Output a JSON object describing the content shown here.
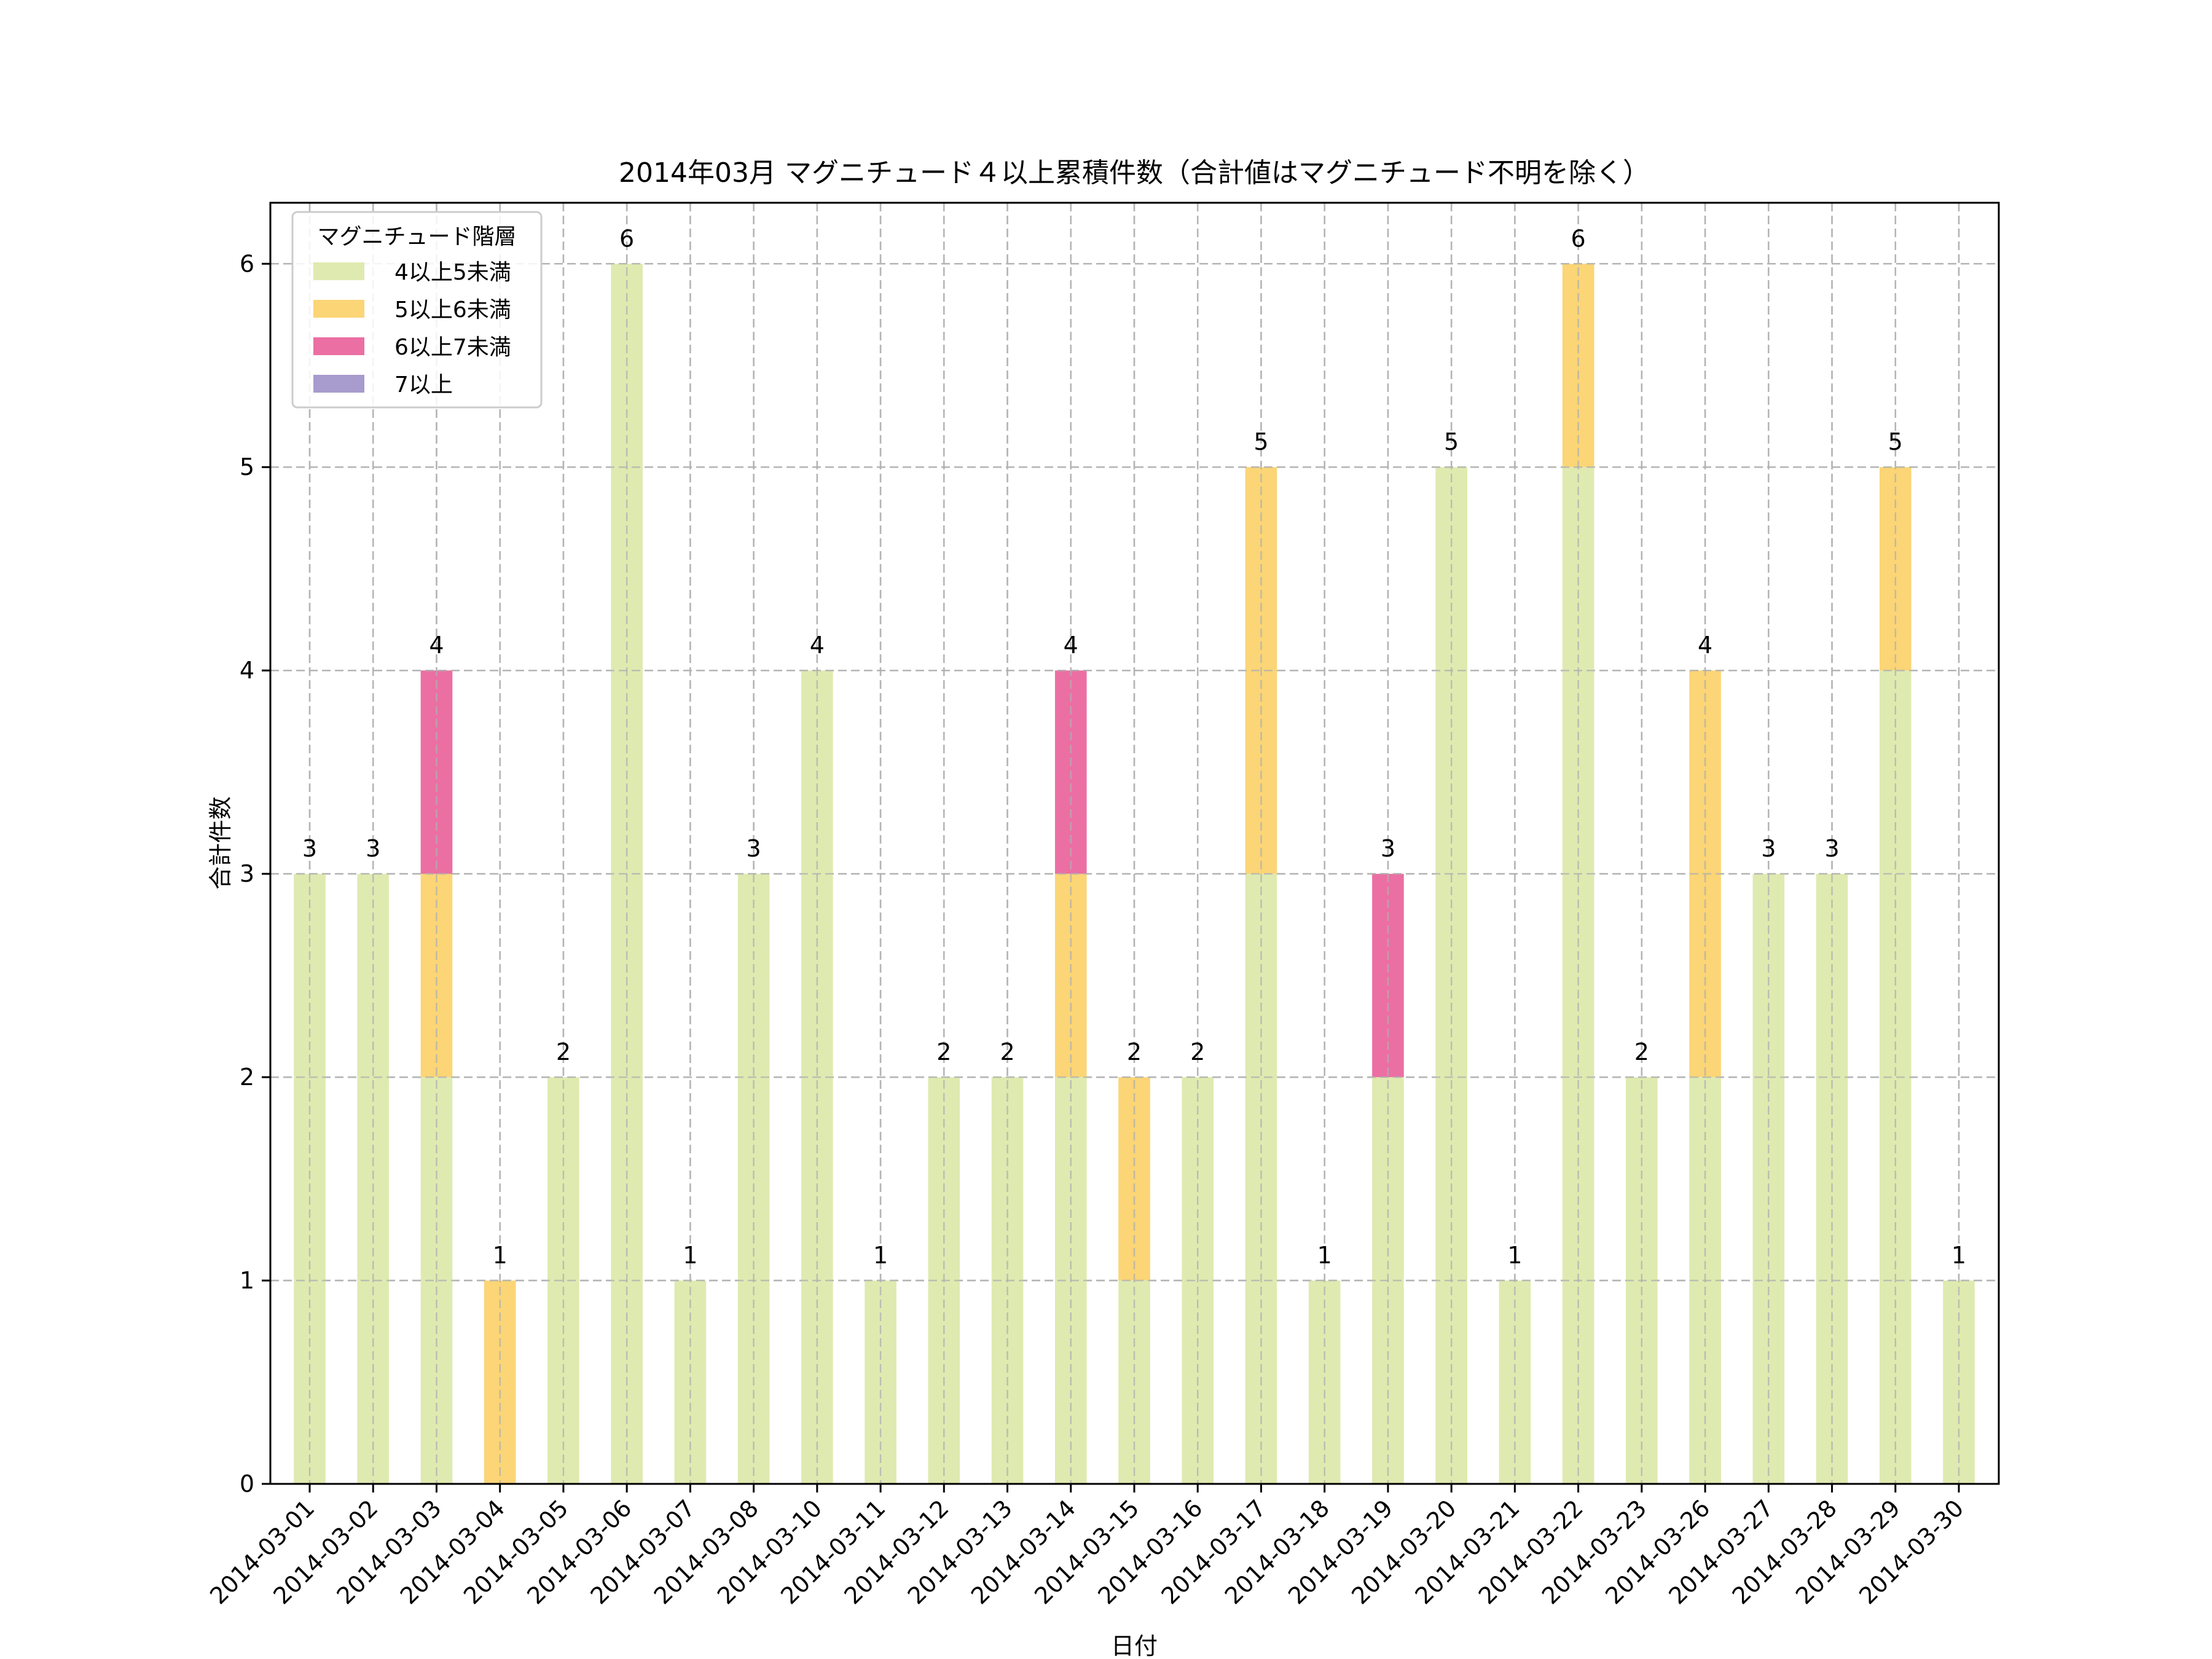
{
  "chart_data": {
    "type": "bar",
    "stacked": true,
    "title": "2014年03月 マグニチュード４以上累積件数（合計値はマグニチュード不明を除く）",
    "xlabel": "日付",
    "ylabel": "合計件数",
    "ylim": [
      0,
      6.3
    ],
    "yticks": [
      0,
      1,
      2,
      3,
      4,
      5,
      6
    ],
    "grid": true,
    "legend": {
      "title": "マグニチュード階層",
      "placement": "top-left"
    },
    "categories": [
      "2014-03-01",
      "2014-03-02",
      "2014-03-03",
      "2014-03-04",
      "2014-03-05",
      "2014-03-06",
      "2014-03-07",
      "2014-03-08",
      "2014-03-10",
      "2014-03-11",
      "2014-03-12",
      "2014-03-13",
      "2014-03-14",
      "2014-03-15",
      "2014-03-16",
      "2014-03-17",
      "2014-03-18",
      "2014-03-19",
      "2014-03-20",
      "2014-03-21",
      "2014-03-22",
      "2014-03-23",
      "2014-03-26",
      "2014-03-27",
      "2014-03-28",
      "2014-03-29",
      "2014-03-30"
    ],
    "series": [
      {
        "name": "4以上5未満",
        "color": "#dfeab0",
        "values": [
          3,
          3,
          2,
          0,
          2,
          6,
          1,
          3,
          4,
          1,
          2,
          2,
          2,
          1,
          2,
          3,
          1,
          2,
          5,
          1,
          5,
          2,
          2,
          3,
          3,
          4,
          1
        ]
      },
      {
        "name": "5以上6未満",
        "color": "#fbd576",
        "values": [
          0,
          0,
          1,
          1,
          0,
          0,
          0,
          0,
          0,
          0,
          0,
          0,
          1,
          1,
          0,
          2,
          0,
          0,
          0,
          0,
          1,
          0,
          2,
          0,
          0,
          1,
          0
        ]
      },
      {
        "name": "6以上7未満",
        "color": "#eb6fa3",
        "values": [
          0,
          0,
          1,
          0,
          0,
          0,
          0,
          0,
          0,
          0,
          0,
          0,
          1,
          0,
          0,
          0,
          0,
          1,
          0,
          0,
          0,
          0,
          0,
          0,
          0,
          0,
          0
        ]
      },
      {
        "name": "7以上",
        "color": "#a89bcd",
        "values": [
          0,
          0,
          0,
          0,
          0,
          0,
          0,
          0,
          0,
          0,
          0,
          0,
          0,
          0,
          0,
          0,
          0,
          0,
          0,
          0,
          0,
          0,
          0,
          0,
          0,
          0,
          0
        ]
      }
    ],
    "totals": [
      3,
      3,
      4,
      1,
      2,
      6,
      1,
      3,
      4,
      1,
      2,
      2,
      4,
      2,
      2,
      5,
      1,
      3,
      5,
      1,
      6,
      2,
      4,
      3,
      3,
      5,
      1
    ]
  }
}
